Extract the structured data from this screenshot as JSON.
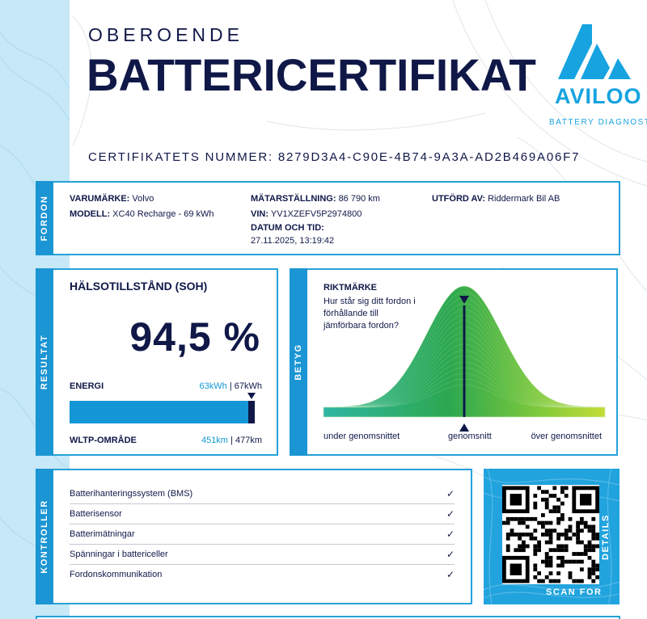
{
  "header": {
    "subtitle": "OBEROENDE",
    "title": "BATTERICERTIFIKAT",
    "logo_word": "AVILOO",
    "logo_sub": "BATTERY DIAGNOSTICS",
    "cert_number": "CERTIFIKATETS NUMMER: 8279D3A4-C90E-4B74-9A3A-AD2B469A06F7"
  },
  "vehicle": {
    "tab": "FORDON",
    "brand_label": "VARUMÄRKE:",
    "brand_value": "Volvo",
    "model_label": "MODELL:",
    "model_value": "XC40 Recharge - 69 kWh",
    "odometer_label": "MÄTARSTÄLLNING:",
    "odometer_value": "86 790 km",
    "vin_label": "VIN:",
    "vin_value": "YV1XZEFV5P2974800",
    "datetime_label": "DATUM OCH TID:",
    "datetime_value": "27.11.2025, 13:19:42",
    "performed_label": "UTFÖRD AV:",
    "performed_value": "Riddermark Bil AB"
  },
  "result": {
    "tab": "RESULTAT",
    "heading": "HÄLSOTILLSTÅND (SOH)",
    "soh_value": "94,5 %",
    "energy_label": "ENERGI",
    "energy_current": "63kWh",
    "energy_sep": " | ",
    "energy_max": "67kWh",
    "energy_fraction": 0.945,
    "wltp_label": "WLTP-OMRÅDE",
    "wltp_current": "451km",
    "wltp_sep": " | ",
    "wltp_max": "477km"
  },
  "rating": {
    "tab": "BETYG",
    "heading": "RIKTMÄRKE",
    "question": [
      "Hur står sig ditt fordon i",
      "förhållande till",
      "jämförbara fordon?"
    ],
    "label_below": "under genomsnittet",
    "label_avg": "genomsnitt",
    "label_above": "över genomsnittet",
    "vehicle_position": 0.5
  },
  "checks": {
    "tab": "KONTROLLER",
    "items": [
      {
        "label": "Batterihanteringssystem (BMS)",
        "mark": "✓"
      },
      {
        "label": "Batterisensor",
        "mark": "✓"
      },
      {
        "label": "Batterimätningar",
        "mark": "✓"
      },
      {
        "label": "Spänningar i battericeller",
        "mark": "✓"
      },
      {
        "label": "Fordonskommunikation",
        "mark": "✓"
      }
    ]
  },
  "qr": {
    "scan_label": "SCAN FOR",
    "details_label": "DETAILS"
  },
  "colors": {
    "navy": "#101848",
    "accent": "#1b95d3",
    "light_blue": "#c6e8f7",
    "bar_blue": "#1596d6"
  }
}
